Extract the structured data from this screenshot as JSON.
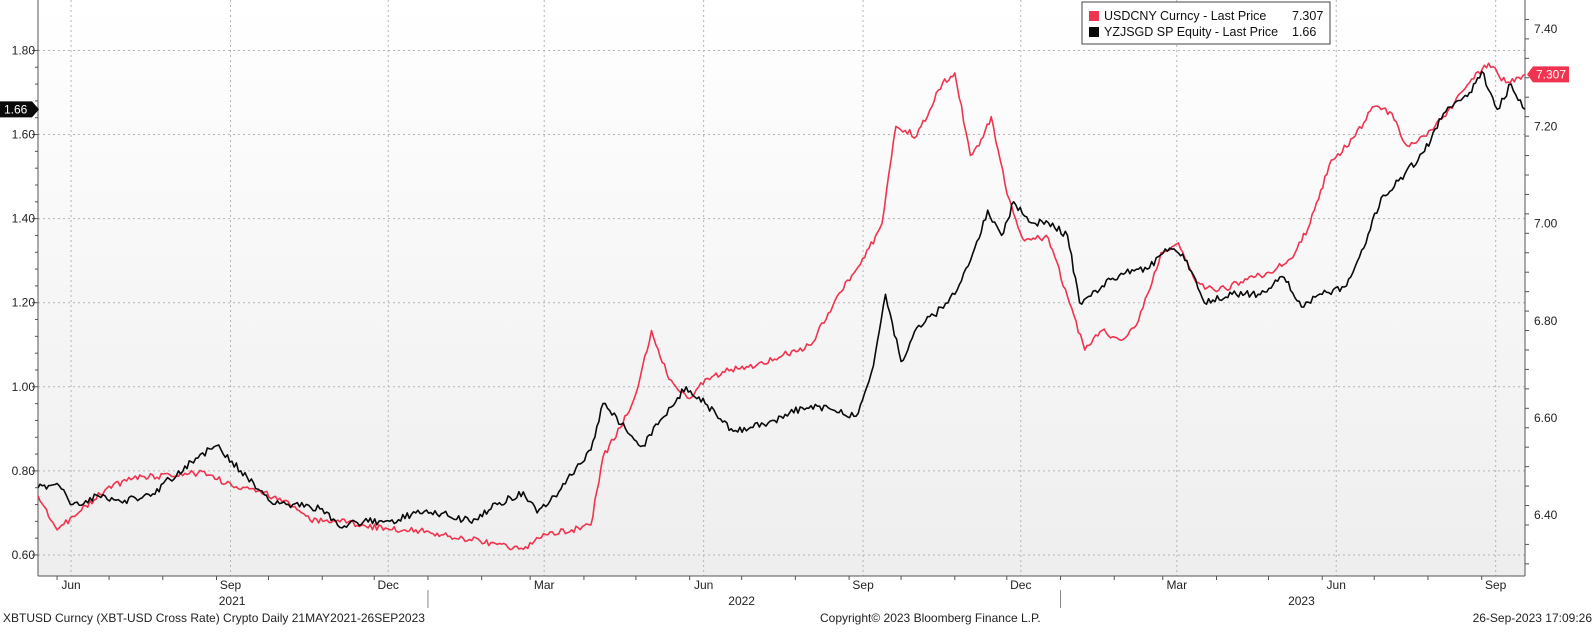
{
  "chart_data": {
    "type": "line",
    "title": "",
    "xlabel": "",
    "ylabel": "",
    "grid": true,
    "legend_position": "top-right",
    "x_range": [
      "2021-05-21",
      "2023-09-26"
    ],
    "y_left": {
      "range": [
        0.55,
        1.92
      ],
      "ticks": [
        "0.60",
        "0.80",
        "1.00",
        "1.20",
        "1.40",
        "1.60",
        "1.80"
      ]
    },
    "y_right": {
      "range": [
        6.275,
        7.46
      ],
      "ticks": [
        "6.40",
        "6.60",
        "6.80",
        "7.00",
        "7.20",
        "7.40"
      ]
    },
    "month_ticks": [
      "Jun",
      "Sep",
      "Dec",
      "Mar",
      "Jun",
      "Sep",
      "Dec",
      "Mar",
      "Jun",
      "Sep"
    ],
    "year_labels": [
      "2021",
      "2022",
      "2023"
    ],
    "series": [
      {
        "name": "USDCNY Curncy - Last Price",
        "legend_value": "7.307",
        "axis": "right",
        "color": "#f0334f",
        "points": [
          [
            "2021-05-21",
            6.44
          ],
          [
            "2021-06-01",
            6.37
          ],
          [
            "2021-06-15",
            6.41
          ],
          [
            "2021-07-01",
            6.46
          ],
          [
            "2021-07-20",
            6.48
          ],
          [
            "2021-08-10",
            6.48
          ],
          [
            "2021-08-25",
            6.49
          ],
          [
            "2021-09-10",
            6.46
          ],
          [
            "2021-09-25",
            6.45
          ],
          [
            "2021-10-10",
            6.43
          ],
          [
            "2021-10-25",
            6.39
          ],
          [
            "2021-11-10",
            6.39
          ],
          [
            "2021-11-25",
            6.38
          ],
          [
            "2021-12-10",
            6.37
          ],
          [
            "2021-12-25",
            6.37
          ],
          [
            "2022-01-10",
            6.36
          ],
          [
            "2022-01-25",
            6.35
          ],
          [
            "2022-02-10",
            6.34
          ],
          [
            "2022-02-25",
            6.33
          ],
          [
            "2022-03-10",
            6.36
          ],
          [
            "2022-03-25",
            6.37
          ],
          [
            "2022-04-05",
            6.38
          ],
          [
            "2022-04-12",
            6.52
          ],
          [
            "2022-04-22",
            6.58
          ],
          [
            "2022-05-01",
            6.65
          ],
          [
            "2022-05-10",
            6.78
          ],
          [
            "2022-05-20",
            6.68
          ],
          [
            "2022-06-01",
            6.64
          ],
          [
            "2022-06-10",
            6.68
          ],
          [
            "2022-06-25",
            6.7
          ],
          [
            "2022-07-10",
            6.71
          ],
          [
            "2022-07-25",
            6.73
          ],
          [
            "2022-08-10",
            6.75
          ],
          [
            "2022-08-25",
            6.85
          ],
          [
            "2022-09-10",
            6.93
          ],
          [
            "2022-09-20",
            7.0
          ],
          [
            "2022-09-28",
            7.2
          ],
          [
            "2022-10-10",
            7.18
          ],
          [
            "2022-10-25",
            7.29
          ],
          [
            "2022-11-01",
            7.31
          ],
          [
            "2022-11-10",
            7.14
          ],
          [
            "2022-11-15",
            7.16
          ],
          [
            "2022-11-22",
            7.22
          ],
          [
            "2022-11-30",
            7.08
          ],
          [
            "2022-12-10",
            6.97
          ],
          [
            "2022-12-25",
            6.97
          ],
          [
            "2023-01-05",
            6.85
          ],
          [
            "2023-01-15",
            6.74
          ],
          [
            "2023-01-25",
            6.78
          ],
          [
            "2023-02-05",
            6.76
          ],
          [
            "2023-02-15",
            6.8
          ],
          [
            "2023-02-28",
            6.94
          ],
          [
            "2023-03-10",
            6.96
          ],
          [
            "2023-03-20",
            6.88
          ],
          [
            "2023-04-01",
            6.86
          ],
          [
            "2023-04-15",
            6.88
          ],
          [
            "2023-05-01",
            6.9
          ],
          [
            "2023-05-15",
            6.93
          ],
          [
            "2023-05-25",
            7.0
          ],
          [
            "2023-06-05",
            7.12
          ],
          [
            "2023-06-20",
            7.18
          ],
          [
            "2023-06-30",
            7.24
          ],
          [
            "2023-07-10",
            7.23
          ],
          [
            "2023-07-20",
            7.16
          ],
          [
            "2023-07-30",
            7.18
          ],
          [
            "2023-08-10",
            7.22
          ],
          [
            "2023-08-25",
            7.29
          ],
          [
            "2023-09-05",
            7.33
          ],
          [
            "2023-09-15",
            7.29
          ],
          [
            "2023-09-26",
            7.307
          ]
        ]
      },
      {
        "name": "YZJSGD SP Equity - Last Price",
        "legend_value": "1.66",
        "axis": "left",
        "color": "#0a0a0a",
        "points": [
          [
            "2021-05-21",
            0.76
          ],
          [
            "2021-06-01",
            0.77
          ],
          [
            "2021-06-10",
            0.72
          ],
          [
            "2021-06-25",
            0.74
          ],
          [
            "2021-07-10",
            0.73
          ],
          [
            "2021-07-25",
            0.74
          ],
          [
            "2021-08-05",
            0.78
          ],
          [
            "2021-08-20",
            0.83
          ],
          [
            "2021-09-01",
            0.86
          ],
          [
            "2021-09-15",
            0.8
          ],
          [
            "2021-10-01",
            0.73
          ],
          [
            "2021-10-15",
            0.72
          ],
          [
            "2021-11-01",
            0.71
          ],
          [
            "2021-11-10",
            0.67
          ],
          [
            "2021-11-25",
            0.68
          ],
          [
            "2021-12-10",
            0.68
          ],
          [
            "2021-12-25",
            0.7
          ],
          [
            "2022-01-10",
            0.7
          ],
          [
            "2022-01-25",
            0.68
          ],
          [
            "2022-02-10",
            0.72
          ],
          [
            "2022-02-25",
            0.75
          ],
          [
            "2022-03-05",
            0.7
          ],
          [
            "2022-03-15",
            0.74
          ],
          [
            "2022-03-25",
            0.79
          ],
          [
            "2022-04-05",
            0.85
          ],
          [
            "2022-04-12",
            0.96
          ],
          [
            "2022-04-25",
            0.9
          ],
          [
            "2022-05-05",
            0.86
          ],
          [
            "2022-05-15",
            0.92
          ],
          [
            "2022-05-30",
            1.0
          ],
          [
            "2022-06-10",
            0.96
          ],
          [
            "2022-06-25",
            0.9
          ],
          [
            "2022-07-05",
            0.9
          ],
          [
            "2022-07-20",
            0.92
          ],
          [
            "2022-08-05",
            0.95
          ],
          [
            "2022-08-20",
            0.95
          ],
          [
            "2022-09-05",
            0.93
          ],
          [
            "2022-09-15",
            1.05
          ],
          [
            "2022-09-22",
            1.22
          ],
          [
            "2022-10-01",
            1.06
          ],
          [
            "2022-10-10",
            1.14
          ],
          [
            "2022-10-20",
            1.17
          ],
          [
            "2022-11-01",
            1.22
          ],
          [
            "2022-11-10",
            1.3
          ],
          [
            "2022-11-20",
            1.42
          ],
          [
            "2022-11-28",
            1.36
          ],
          [
            "2022-12-05",
            1.44
          ],
          [
            "2022-12-15",
            1.39
          ],
          [
            "2022-12-25",
            1.39
          ],
          [
            "2023-01-05",
            1.36
          ],
          [
            "2023-01-12",
            1.2
          ],
          [
            "2023-01-25",
            1.24
          ],
          [
            "2023-02-05",
            1.27
          ],
          [
            "2023-02-20",
            1.28
          ],
          [
            "2023-03-05",
            1.33
          ],
          [
            "2023-03-15",
            1.3
          ],
          [
            "2023-03-25",
            1.2
          ],
          [
            "2023-04-10",
            1.22
          ],
          [
            "2023-04-25",
            1.22
          ],
          [
            "2023-05-10",
            1.26
          ],
          [
            "2023-05-20",
            1.19
          ],
          [
            "2023-06-01",
            1.22
          ],
          [
            "2023-06-15",
            1.24
          ],
          [
            "2023-06-25",
            1.33
          ],
          [
            "2023-07-05",
            1.45
          ],
          [
            "2023-07-15",
            1.49
          ],
          [
            "2023-07-30",
            1.56
          ],
          [
            "2023-08-10",
            1.65
          ],
          [
            "2023-08-25",
            1.7
          ],
          [
            "2023-09-01",
            1.75
          ],
          [
            "2023-09-10",
            1.66
          ],
          [
            "2023-09-18",
            1.72
          ],
          [
            "2023-09-26",
            1.66
          ]
        ]
      }
    ]
  },
  "footer": {
    "description": "XBTUSD Curncy (XBT-USD Cross Rate) Crypto  Daily 21MAY2021-26SEP2023",
    "copyright": "Copyright© 2023 Bloomberg Finance L.P.",
    "timestamp": "26-Sep-2023 17:09:26"
  },
  "colors": {
    "plot_bg_top": "#ffffff",
    "plot_bg_bottom": "#eeeeee",
    "grid": "#b4b4b4"
  }
}
